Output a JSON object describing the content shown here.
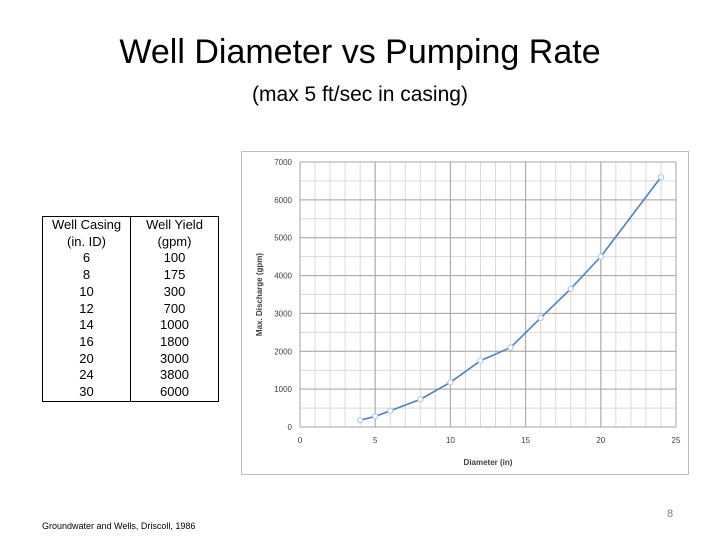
{
  "slide": {
    "title": "Well Diameter vs Pumping Rate",
    "subtitle": "(max 5 ft/sec in casing)",
    "citation": "Groundwater and Wells, Driscoll, 1986",
    "page_number": "8"
  },
  "table": {
    "header": [
      [
        "Well Casing",
        "Well Yield"
      ],
      [
        "(in. ID)",
        "(gpm)"
      ]
    ],
    "rows": [
      [
        "6",
        "100"
      ],
      [
        "8",
        "175"
      ],
      [
        "10",
        "300"
      ],
      [
        "12",
        "700"
      ],
      [
        "14",
        "1000"
      ],
      [
        "16",
        "1800"
      ],
      [
        "20",
        "3000"
      ],
      [
        "24",
        "3800"
      ],
      [
        "30",
        "6000"
      ]
    ]
  },
  "chart_data": {
    "type": "line",
    "title": "",
    "xlabel": "Diameter (in)",
    "ylabel": "Max. Discharge (gpm)",
    "xlim": [
      0,
      25
    ],
    "ylim": [
      0,
      7000
    ],
    "x_ticks": [
      "0",
      "5",
      "10",
      "15",
      "20",
      "25"
    ],
    "y_ticks": [
      "0",
      "1000",
      "2000",
      "3000",
      "4000",
      "5000",
      "6000",
      "7000"
    ],
    "x_minor_step": 1,
    "y_minor_step": 500,
    "grid": true,
    "series": [
      {
        "name": "Max. Discharge",
        "color": "#4f81bd",
        "x": [
          4,
          5,
          6,
          8,
          10,
          12,
          14,
          16,
          18,
          20,
          24
        ],
        "y": [
          180,
          280,
          430,
          730,
          1180,
          1750,
          2100,
          2880,
          3650,
          4500,
          6600
        ]
      }
    ]
  }
}
